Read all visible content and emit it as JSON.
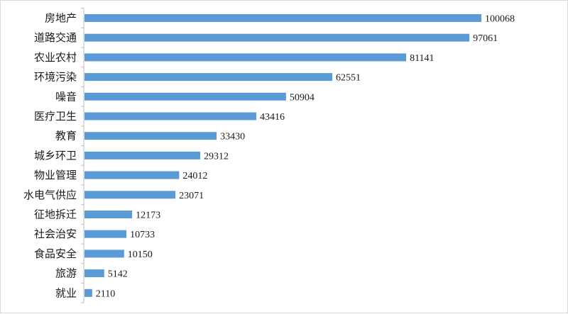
{
  "chart_data": {
    "type": "bar",
    "orientation": "horizontal",
    "title": "",
    "xlabel": "",
    "ylabel": "",
    "categories": [
      "房地产",
      "道路交通",
      "农业农村",
      "环境污染",
      "噪音",
      "医疗卫生",
      "教育",
      "城乡环卫",
      "物业管理",
      "水电气供应",
      "征地拆迁",
      "社会治安",
      "食品安全",
      "旅游",
      "就业"
    ],
    "values": [
      100068,
      97061,
      81141,
      62551,
      50904,
      43416,
      33430,
      29312,
      24012,
      23071,
      12173,
      10733,
      10150,
      5142,
      2110
    ],
    "xlim": [
      0,
      100068
    ],
    "grid": false,
    "legend": "none",
    "bar_color": "#5b9bd5",
    "axis_color": "#bfbfbf",
    "data_labels": true
  }
}
